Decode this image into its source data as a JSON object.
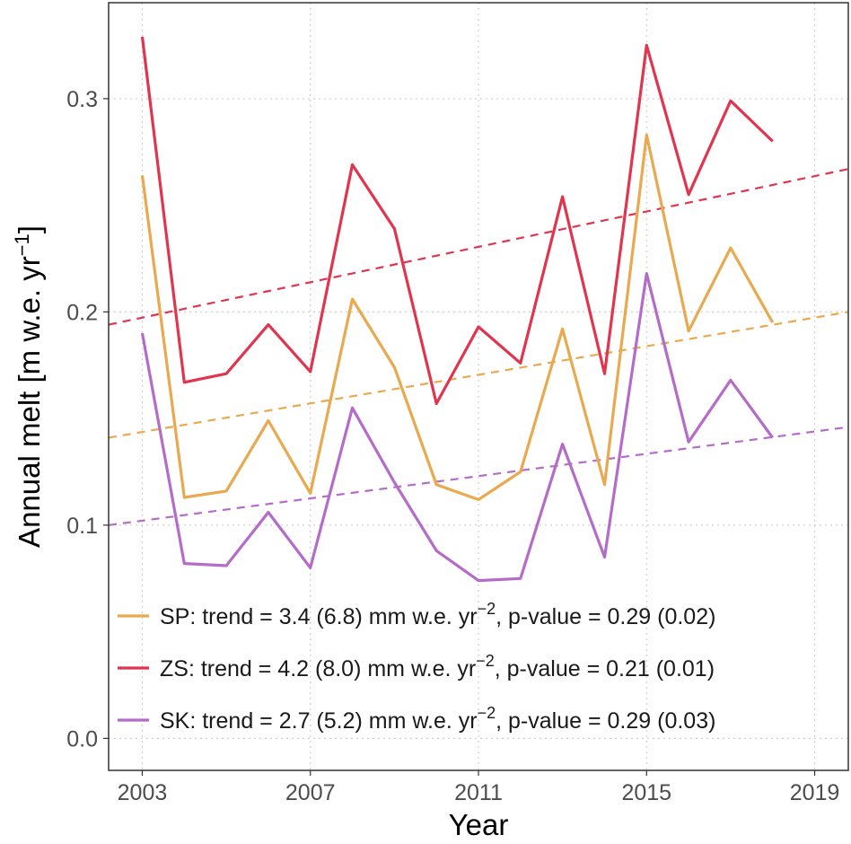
{
  "chart_data": {
    "type": "line",
    "xlabel": "Year",
    "ylabel_main": "Annual melt [m w.e. yr",
    "ylabel_sup": "−1",
    "ylabel_tail": "]",
    "xlim": [
      2002.2,
      2019.8
    ],
    "ylim": [
      -0.015,
      0.345
    ],
    "x_ticks": [
      2003,
      2007,
      2011,
      2015,
      2019
    ],
    "y_ticks": [
      0.0,
      0.1,
      0.2,
      0.3
    ],
    "x_tick_labels": [
      "2003",
      "2007",
      "2011",
      "2015",
      "2019"
    ],
    "y_tick_labels": [
      "0.0",
      "0.1",
      "0.2",
      "0.3"
    ],
    "grid": true,
    "legend_position": "bottom-right",
    "x": [
      2003,
      2004,
      2005,
      2006,
      2007,
      2008,
      2009,
      2010,
      2011,
      2012,
      2013,
      2014,
      2015,
      2016,
      2017,
      2018
    ],
    "series": [
      {
        "id": "sp",
        "name": "SP",
        "color": "#E8A94F",
        "values": [
          0.264,
          0.113,
          0.116,
          0.149,
          0.115,
          0.206,
          0.174,
          0.119,
          0.112,
          0.125,
          0.192,
          0.119,
          0.283,
          0.191,
          0.23,
          0.195
        ],
        "trend": {
          "x": [
            2002.2,
            2019.8
          ],
          "y": [
            0.141,
            0.2
          ]
        },
        "legend": {
          "prefix": "SP: trend = 3.4 (6.8) mm w.e. yr",
          "sup": "−2",
          "suffix": ", p-value = 0.29 (0.02)"
        }
      },
      {
        "id": "zs",
        "name": "ZS",
        "color": "#E0354F",
        "values": [
          0.329,
          0.167,
          0.171,
          0.194,
          0.172,
          0.269,
          0.239,
          0.157,
          0.193,
          0.176,
          0.254,
          0.171,
          0.325,
          0.255,
          0.299,
          0.28
        ],
        "trend": {
          "x": [
            2002.2,
            2019.8
          ],
          "y": [
            0.194,
            0.267
          ]
        },
        "legend": {
          "prefix": "ZS: trend = 4.2 (8.0) mm w.e. yr",
          "sup": "−2",
          "suffix": ", p-value = 0.21 (0.01)"
        }
      },
      {
        "id": "sk",
        "name": "SK",
        "color": "#B56CC9",
        "values": [
          0.19,
          0.082,
          0.081,
          0.106,
          0.08,
          0.155,
          0.12,
          0.088,
          0.074,
          0.075,
          0.138,
          0.085,
          0.218,
          0.139,
          0.168,
          0.141
        ],
        "trend": {
          "x": [
            2002.2,
            2019.8
          ],
          "y": [
            0.1,
            0.146
          ]
        },
        "legend": {
          "prefix": "SK: trend = 2.7 (5.2) mm w.e. yr",
          "sup": "−2",
          "suffix": ", p-value = 0.29 (0.03)"
        }
      }
    ]
  }
}
